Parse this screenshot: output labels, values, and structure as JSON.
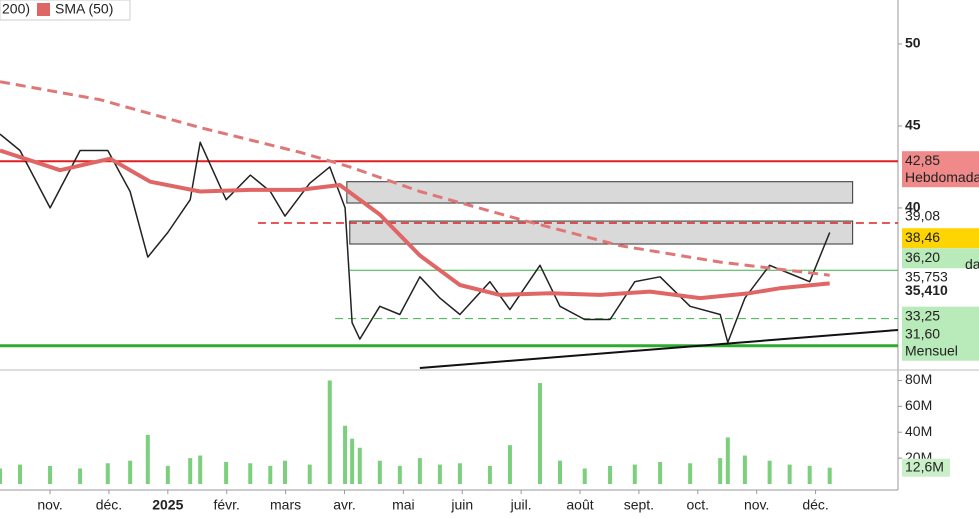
{
  "chart_data": {
    "type": "line",
    "legend": [
      "200)",
      "SMA (50)"
    ],
    "xlim": [
      -0.85,
      14.4
    ],
    "xticks": [
      {
        "value": 0,
        "label": "nov."
      },
      {
        "value": 1,
        "label": "déc."
      },
      {
        "value": 2,
        "label": "2025"
      },
      {
        "value": 3,
        "label": "févr."
      },
      {
        "value": 4,
        "label": "mars"
      },
      {
        "value": 5,
        "label": "avr."
      },
      {
        "value": 6,
        "label": "mai"
      },
      {
        "value": 7,
        "label": "juin"
      },
      {
        "value": 8,
        "label": "juil."
      },
      {
        "value": 9,
        "label": "août"
      },
      {
        "value": 10,
        "label": "sept."
      },
      {
        "value": 11,
        "label": "oct."
      },
      {
        "value": 12,
        "label": "nov."
      },
      {
        "value": 13,
        "label": "déc."
      }
    ],
    "ylim": [
      30.24,
      52.68
    ],
    "yticks": [
      50,
      45,
      40
    ],
    "y2lim": [
      0,
      85
    ],
    "y2ticks": [
      {
        "value": 80,
        "label": "80M"
      },
      {
        "value": 60,
        "label": "60M"
      },
      {
        "value": 40,
        "label": "40M"
      },
      {
        "value": 20,
        "label": "20M"
      }
    ],
    "series": [
      {
        "color": "#222222",
        "x": [
          -0.85,
          -0.51,
          0,
          0.51,
          0.98,
          1.36,
          1.66,
          2,
          2.38,
          2.55,
          2.99,
          3.4,
          3.74,
          3.99,
          4.41,
          4.75,
          5.01,
          5.13,
          5.26,
          5.6,
          5.94,
          6.28,
          6.62,
          6.96,
          7.47,
          7.81,
          8.32,
          8.66,
          9.08,
          9.51,
          9.93,
          10.36,
          10.87,
          11.38,
          11.51,
          11.8,
          12.22,
          12.56,
          12.9,
          13.24
        ],
        "values": [
          44.5,
          43.5,
          40,
          43.5,
          43.5,
          41,
          37,
          38.5,
          40.5,
          44,
          40.5,
          42,
          41,
          39.5,
          41.5,
          42.5,
          40,
          33,
          32,
          34,
          33.5,
          35.8,
          34.5,
          33.5,
          35.5,
          33.8,
          36.5,
          34,
          33.2,
          33.2,
          35.5,
          35.8,
          34,
          33.5,
          31.8,
          34.5,
          36.5,
          36,
          35.5,
          38.5
        ]
      },
      {
        "name": "SMA (50)",
        "color": "#e06666",
        "x": [
          -0.85,
          0.17,
          1.02,
          1.7,
          2.55,
          3.4,
          4.24,
          4.92,
          5.6,
          6.28,
          6.96,
          7.64,
          8.49,
          9.34,
          10.19,
          11.04,
          11.88,
          12.39,
          13.24
        ],
        "values": [
          43.5,
          42.3,
          43,
          41.6,
          41,
          41.1,
          41.1,
          41.4,
          39.6,
          37.1,
          35.3,
          34.7,
          34.8,
          34.7,
          34.9,
          34.5,
          34.8,
          35.1,
          35.4
        ]
      },
      {
        "name": "200)",
        "color": "#e07777",
        "dashed": true,
        "x": [
          -0.85,
          0.85,
          2.55,
          4.24,
          5.09,
          6.28,
          7.98,
          9.68,
          11.38,
          13.24
        ],
        "values": [
          47.7,
          46.6,
          44.9,
          43.4,
          42.5,
          41,
          39.3,
          37.7,
          36.7,
          35.9
        ]
      },
      {
        "axis": "y2",
        "color": "#7ccf7c",
        "x": [
          -0.85,
          -0.51,
          0,
          0.51,
          0.98,
          1.36,
          1.66,
          2,
          2.38,
          2.55,
          2.99,
          3.4,
          3.74,
          3.99,
          4.41,
          4.75,
          5.01,
          5.13,
          5.26,
          5.6,
          5.94,
          6.28,
          6.62,
          6.96,
          7.47,
          7.81,
          8.32,
          8.66,
          9.08,
          9.51,
          9.93,
          10.36,
          10.87,
          11.38,
          11.51,
          11.8,
          12.22,
          12.56,
          12.9,
          13.24
        ],
        "values": [
          12,
          15,
          14,
          12,
          16,
          18,
          38,
          14,
          20,
          22,
          17,
          16,
          14,
          18,
          15,
          80,
          45,
          35,
          28,
          18,
          14,
          20,
          15,
          16,
          14,
          30,
          78,
          18,
          12,
          14,
          15,
          17,
          16,
          20,
          36,
          22,
          18,
          15,
          14,
          12.6
        ]
      }
    ],
    "levels": [
      {
        "value": 42.85,
        "color": "#e02020",
        "x_from": -0.85,
        "width": 2
      },
      {
        "value": 39.08,
        "color": "#e02020",
        "x_from": 3.53,
        "width": 1.5,
        "dashed": true
      },
      {
        "value": 36.2,
        "color": "#3cb44b",
        "x_from": 5.09,
        "width": 1
      },
      {
        "value": 33.25,
        "color": "#3cb44b",
        "x_from": 4.84,
        "width": 1,
        "dashed": true
      },
      {
        "value": 31.6,
        "color": "#2eaa2e",
        "x_from": -0.85,
        "width": 3
      }
    ],
    "zones": [
      {
        "from": 40.3,
        "to": 41.6,
        "x": [
          5.04,
          13.63
        ]
      },
      {
        "from": 37.8,
        "to": 39.2,
        "x": [
          5.09,
          13.63
        ]
      }
    ],
    "trendline": {
      "x": [
        6.28,
        14.4
      ],
      "values": [
        30.24,
        32.56
      ]
    },
    "price_labels": [
      {
        "value": 42.85,
        "label": "42,85",
        "note": "Hebdomada",
        "bg": "#f08a8a",
        "fg": "#222"
      },
      {
        "value": 39.08,
        "label": "39,08",
        "fg": "#d02020"
      },
      {
        "value": 38.46,
        "label": "38,46",
        "bg": "#ffd400",
        "fg": "#222"
      },
      {
        "value": 36.2,
        "label": "36,20",
        "note": "da",
        "bg": "#b9eab9",
        "fg": "#222"
      },
      {
        "value": 35.753,
        "label": "35,753",
        "fg": "#e05050"
      },
      {
        "value": 35.41,
        "label": "35,410",
        "fg": "#e05050",
        "bold": true
      },
      {
        "value": 33.25,
        "label": "33,25",
        "bg": "#b9eab9",
        "fg": "#222"
      },
      {
        "value": 31.6,
        "label": "31,60",
        "note": "Mensuel",
        "bg": "#b9eab9",
        "fg": "#222"
      }
    ],
    "volume_label": {
      "value": 12.6,
      "label": "12,6M",
      "bg": "#c9f0c9",
      "fg": "#3a9a3a"
    }
  }
}
